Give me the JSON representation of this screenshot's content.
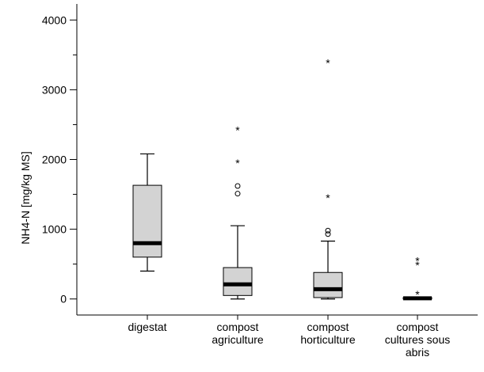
{
  "chart_data": {
    "type": "boxplot",
    "ylabel": "NH4-N [mg/kg MS]",
    "ylim": [
      -230,
      4230
    ],
    "yticks": [
      0,
      1000,
      2000,
      3000,
      4000
    ],
    "ytick_labels": [
      "0",
      "1000",
      "2000",
      "3000",
      "4000"
    ],
    "minor_ticks": [
      500,
      1500,
      2500,
      3500
    ],
    "grid": false,
    "categories": [
      [
        "digestat"
      ],
      [
        "compost",
        "agriculture"
      ],
      [
        "compost",
        "horticulture"
      ],
      [
        "compost",
        "cultures sous",
        "abris"
      ]
    ],
    "boxes": [
      {
        "whisker_low": 400,
        "q1": 600,
        "median": 800,
        "q3": 1630,
        "whisker_high": 2080,
        "outliers": [],
        "extremes": []
      },
      {
        "whisker_low": 0,
        "q1": 50,
        "median": 210,
        "q3": 450,
        "whisker_high": 1050,
        "outliers": [
          1510,
          1620
        ],
        "extremes": [
          1970,
          2440
        ]
      },
      {
        "whisker_low": 0,
        "q1": 20,
        "median": 140,
        "q3": 380,
        "whisker_high": 830,
        "outliers": [
          930,
          980
        ],
        "extremes": [
          1470,
          3410
        ]
      },
      {
        "whisker_low": 0,
        "q1": 0,
        "median": 10,
        "q3": 20,
        "whisker_high": 20,
        "outliers": [],
        "extremes": [
          90,
          510,
          570
        ]
      }
    ],
    "colors": {
      "box_fill": "#d3d3d3",
      "stroke": "#000000",
      "background": "#ffffff"
    }
  }
}
